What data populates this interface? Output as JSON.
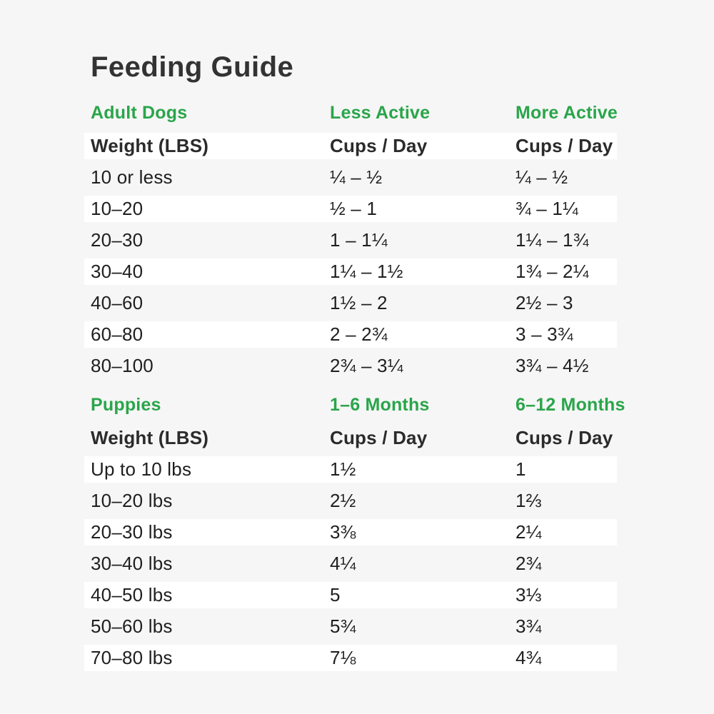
{
  "title": "Feeding Guide",
  "colors": {
    "page_background": "#f6f6f6",
    "row_highlight": "#ffffff",
    "accent_green": "#2aa54a",
    "text_dark": "#1f1f1f",
    "title_dark": "#333333"
  },
  "chart_data": [
    {
      "type": "table",
      "section_label": "Adult Dogs",
      "col_headers": {
        "c2": "Less Active",
        "c3": "More Active"
      },
      "sub_headers": {
        "c1": "Weight (LBS)",
        "c2": "Cups / Day",
        "c3": "Cups / Day"
      },
      "rows": [
        {
          "c1": "10 or less",
          "c2": "¼ – ½",
          "c3": "¼ – ½"
        },
        {
          "c1": "10–20",
          "c2": "½ – 1",
          "c3": "¾ – 1¼"
        },
        {
          "c1": "20–30",
          "c2": "1 – 1¼",
          "c3": "1¼ – 1¾"
        },
        {
          "c1": "30–40",
          "c2": "1¼ – 1½",
          "c3": "1¾ – 2¼"
        },
        {
          "c1": "40–60",
          "c2": "1½ – 2",
          "c3": "2½ – 3"
        },
        {
          "c1": "60–80",
          "c2": "2 – 2¾",
          "c3": "3 – 3¾"
        },
        {
          "c1": "80–100",
          "c2": "2¾ – 3¼",
          "c3": "3¾ – 4½"
        }
      ]
    },
    {
      "type": "table",
      "section_label": "Puppies",
      "col_headers": {
        "c2": "1–6 Months",
        "c3": "6–12 Months"
      },
      "sub_headers": {
        "c1": "Weight (LBS)",
        "c2": "Cups / Day",
        "c3": "Cups / Day"
      },
      "rows": [
        {
          "c1": "Up to 10 lbs",
          "c2": "1½",
          "c3": "1"
        },
        {
          "c1": "10–20 lbs",
          "c2": "2½",
          "c3": "1⅔"
        },
        {
          "c1": "20–30 lbs",
          "c2": "3⅜",
          "c3": "2¼"
        },
        {
          "c1": "30–40 lbs",
          "c2": "4¼",
          "c3": "2¾"
        },
        {
          "c1": "40–50 lbs",
          "c2": "5",
          "c3": "3⅓"
        },
        {
          "c1": "50–60 lbs",
          "c2": "5¾",
          "c3": "3¾"
        },
        {
          "c1": "70–80 lbs",
          "c2": "7⅛",
          "c3": "4¾"
        }
      ]
    }
  ]
}
